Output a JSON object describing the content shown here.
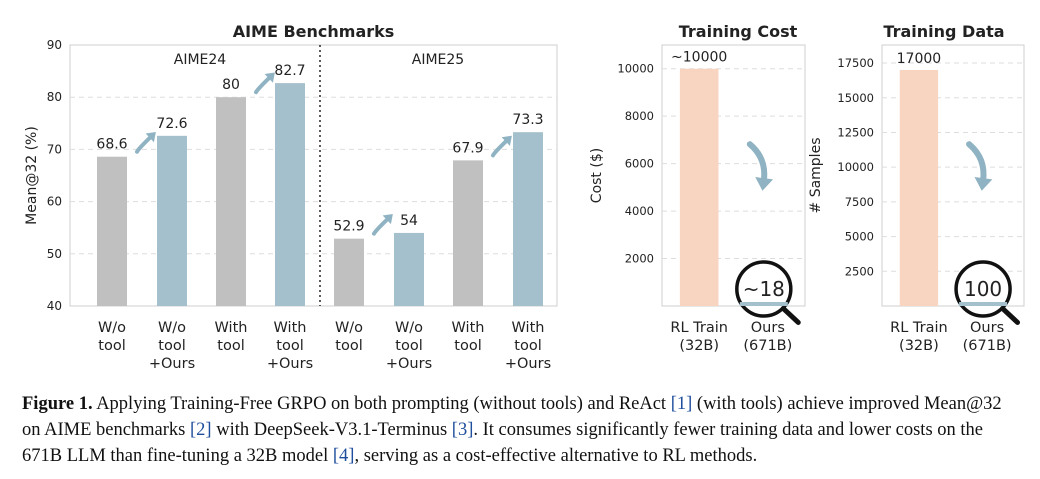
{
  "chart_data": [
    {
      "type": "bar",
      "title": "AIME Benchmarks",
      "ylabel": "Mean@32 (%)",
      "ylim": [
        40,
        90
      ],
      "yticks": [
        40,
        50,
        60,
        70,
        80,
        90
      ],
      "grid": true,
      "panels": [
        {
          "name": "AIME24",
          "categories": [
            "W/o tool",
            "W/o tool +Ours",
            "With tool",
            "With tool +Ours"
          ],
          "values": [
            68.6,
            72.6,
            80,
            82.7
          ],
          "labels": [
            "68.6",
            "72.6",
            "80",
            "82.7"
          ]
        },
        {
          "name": "AIME25",
          "categories": [
            "W/o tool",
            "W/o tool +Ours",
            "With tool",
            "With tool +Ours"
          ],
          "values": [
            52.9,
            54,
            67.9,
            73.3
          ],
          "labels": [
            "52.9",
            "54",
            "67.9",
            "73.3"
          ]
        }
      ],
      "tick_labels": [
        [
          "W/o",
          "tool"
        ],
        [
          "W/o",
          "tool",
          "+Ours"
        ],
        [
          "With",
          "tool"
        ],
        [
          "With",
          "tool",
          "+Ours"
        ]
      ],
      "colors": {
        "baseline": "#c0c0c0",
        "ours": "#a4c0cc"
      }
    },
    {
      "type": "bar",
      "title": "Training Cost",
      "ylabel": "Cost ($)",
      "ylim": [
        0,
        11000
      ],
      "yticks": [
        2000,
        4000,
        6000,
        8000,
        10000
      ],
      "grid": true,
      "categories": [
        "RL Train (32B)",
        "Ours (671B)"
      ],
      "tick_labels": [
        [
          "RL Train",
          "(32B)"
        ],
        [
          "Ours",
          "(671B)"
        ]
      ],
      "values": [
        10000,
        18
      ],
      "labels": [
        "~10000",
        "~18"
      ],
      "colors": [
        "#f7d5c0",
        "#a4c0cc"
      ]
    },
    {
      "type": "bar",
      "title": "Training Data",
      "ylabel": "# Samples",
      "ylim": [
        0,
        18800
      ],
      "yticks": [
        2500,
        5000,
        7500,
        10000,
        12500,
        15000,
        17500
      ],
      "grid": true,
      "categories": [
        "RL Train (32B)",
        "Ours (671B)"
      ],
      "tick_labels": [
        [
          "RL Train",
          "(32B)"
        ],
        [
          "Ours",
          "(671B)"
        ]
      ],
      "values": [
        17000,
        100
      ],
      "labels": [
        "17000",
        "100"
      ],
      "colors": [
        "#f7d5c0",
        "#a4c0cc"
      ]
    }
  ],
  "caption": {
    "label": "Figure 1.",
    "segments": [
      {
        "t": "Applying Training-Free GRPO on both prompting (without tools) and ReAct "
      },
      {
        "t": "[1]",
        "ref": true
      },
      {
        "t": " (with tools) achieve improved Mean@32 on AIME benchmarks "
      },
      {
        "t": "[2]",
        "ref": true
      },
      {
        "t": " with DeepSeek-V3.1-Terminus "
      },
      {
        "t": "[3]",
        "ref": true
      },
      {
        "t": ". It consumes significantly fewer training data and lower costs on the 671B LLM than fine-tuning a 32B model "
      },
      {
        "t": "[4]",
        "ref": true
      },
      {
        "t": ", serving as a cost-effective alternative to RL methods."
      }
    ]
  }
}
